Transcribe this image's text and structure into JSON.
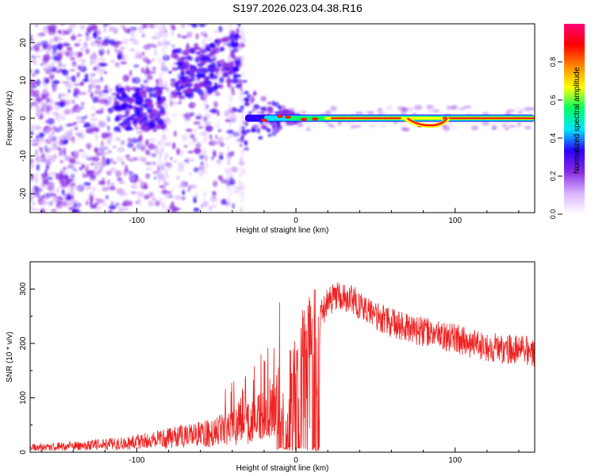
{
  "title": "S197.2026.023.04.38.R16",
  "chart_data": [
    {
      "type": "heatmap",
      "xlabel": "Height of straight line (km)",
      "ylabel": "Frequency (Hz)",
      "xlim": [
        -167,
        150
      ],
      "ylim": [
        -25,
        25
      ],
      "xticks": [
        -100,
        0,
        100
      ],
      "yticks": [
        -20,
        -10,
        0,
        10,
        20
      ],
      "grid": false,
      "colorbar": {
        "label": "Normalized spectral amplitude",
        "range": [
          0,
          1
        ],
        "ticks": [
          0.0,
          0.2,
          0.4,
          0.6,
          0.8
        ],
        "colors": [
          "#ffffff",
          "#d9b3ff",
          "#8a2be2",
          "#2a00ff",
          "#00e5ff",
          "#00ff66",
          "#ffff00",
          "#ff8800",
          "#ff0000",
          "#ff0077"
        ]
      },
      "description_features": {
        "scatter_region_km": [
          -167,
          -35
        ],
        "narrowband_line_km": [
          -35,
          150
        ],
        "line_frequency_hz": 0,
        "peak_frequency_hz_near_-50km": 12,
        "peak_frequency_hz_near_-100km": 4
      }
    },
    {
      "type": "line",
      "xlabel": "Height of straight line (km)",
      "ylabel": "SNR (10 * v/v)",
      "xlim": [
        -167,
        150
      ],
      "ylim": [
        0,
        350
      ],
      "xticks": [
        -100,
        0,
        100
      ],
      "yticks": [
        0,
        100,
        200,
        300
      ],
      "grid": false,
      "series": [
        {
          "color": "#ee2222",
          "x": [
            -167,
            -150,
            -130,
            -110,
            -100,
            -90,
            -80,
            -70,
            -60,
            -50,
            -40,
            -30,
            -20,
            -12,
            -5,
            0,
            5,
            10,
            15,
            20,
            25,
            30,
            35,
            40,
            50,
            60,
            70,
            80,
            90,
            100,
            110,
            120,
            130,
            140,
            150
          ],
          "y": [
            15,
            18,
            22,
            28,
            32,
            38,
            45,
            52,
            58,
            65,
            78,
            95,
            120,
            160,
            190,
            195,
            200,
            215,
            250,
            275,
            285,
            285,
            283,
            270,
            250,
            238,
            228,
            222,
            215,
            208,
            200,
            195,
            190,
            188,
            185
          ]
        }
      ]
    }
  ]
}
